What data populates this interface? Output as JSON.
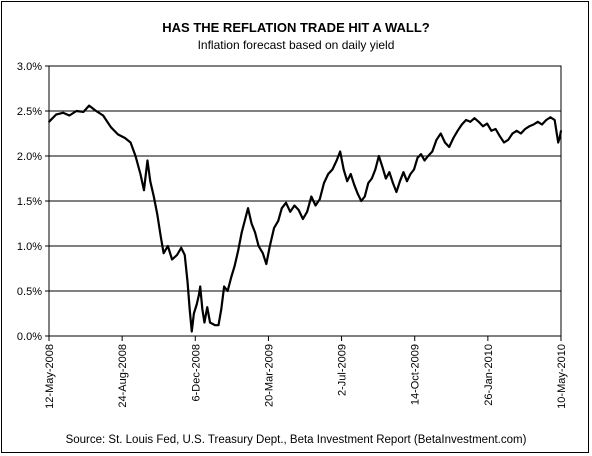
{
  "chart_data": {
    "type": "line",
    "title": "HAS THE REFLATION TRADE HIT A WALL?",
    "subtitle": "Inflation forecast based on daily yield",
    "xlabel": "",
    "ylabel": "",
    "source": "Source: St. Louis Fed, U.S. Treasury Dept., Beta Investment Report (BetaInvestment.com)",
    "x_tick_labels": [
      "12-May-2008",
      "24-Aug-2008",
      "6-Dec-2008",
      "20-Mar-2009",
      "2-Jul-2009",
      "14-Oct-2009",
      "26-Jan-2010",
      "10-May-2010"
    ],
    "y_tick_labels": [
      "0.0%",
      "0.5%",
      "1.0%",
      "1.5%",
      "2.0%",
      "2.5%",
      "3.0%"
    ],
    "ylim": [
      0,
      3.0
    ],
    "xlim": [
      "2008-05-12",
      "2010-05-10"
    ],
    "grid": "horizontal",
    "colors": {
      "line": "#000000",
      "grid": "#000000",
      "background": "#ffffff"
    },
    "series": [
      {
        "points": [
          [
            "2008-05-12",
            2.38
          ],
          [
            "2008-05-22",
            2.46
          ],
          [
            "2008-06-01",
            2.48
          ],
          [
            "2008-06-10",
            2.45
          ],
          [
            "2008-06-20",
            2.5
          ],
          [
            "2008-06-30",
            2.49
          ],
          [
            "2008-07-08",
            2.56
          ],
          [
            "2008-07-18",
            2.5
          ],
          [
            "2008-07-28",
            2.45
          ],
          [
            "2008-08-08",
            2.32
          ],
          [
            "2008-08-18",
            2.24
          ],
          [
            "2008-08-28",
            2.2
          ],
          [
            "2008-09-05",
            2.15
          ],
          [
            "2008-09-12",
            2.0
          ],
          [
            "2008-09-19",
            1.8
          ],
          [
            "2008-09-24",
            1.62
          ],
          [
            "2008-09-29",
            1.95
          ],
          [
            "2008-10-03",
            1.72
          ],
          [
            "2008-10-08",
            1.55
          ],
          [
            "2008-10-13",
            1.35
          ],
          [
            "2008-10-18",
            1.1
          ],
          [
            "2008-10-22",
            0.92
          ],
          [
            "2008-10-28",
            1.0
          ],
          [
            "2008-11-03",
            0.85
          ],
          [
            "2008-11-10",
            0.9
          ],
          [
            "2008-11-16",
            0.98
          ],
          [
            "2008-11-21",
            0.9
          ],
          [
            "2008-11-25",
            0.6
          ],
          [
            "2008-11-28",
            0.3
          ],
          [
            "2008-12-01",
            0.05
          ],
          [
            "2008-12-04",
            0.25
          ],
          [
            "2008-12-08",
            0.35
          ],
          [
            "2008-12-11",
            0.45
          ],
          [
            "2008-12-13",
            0.55
          ],
          [
            "2008-12-16",
            0.3
          ],
          [
            "2008-12-19",
            0.15
          ],
          [
            "2008-12-23",
            0.32
          ],
          [
            "2008-12-27",
            0.15
          ],
          [
            "2009-01-03",
            0.12
          ],
          [
            "2009-01-08",
            0.12
          ],
          [
            "2009-01-12",
            0.3
          ],
          [
            "2009-01-16",
            0.55
          ],
          [
            "2009-01-21",
            0.5
          ],
          [
            "2009-01-26",
            0.65
          ],
          [
            "2009-01-31",
            0.78
          ],
          [
            "2009-02-05",
            0.95
          ],
          [
            "2009-02-10",
            1.15
          ],
          [
            "2009-02-15",
            1.3
          ],
          [
            "2009-02-19",
            1.42
          ],
          [
            "2009-02-24",
            1.25
          ],
          [
            "2009-03-01",
            1.15
          ],
          [
            "2009-03-06",
            1.0
          ],
          [
            "2009-03-12",
            0.92
          ],
          [
            "2009-03-17",
            0.8
          ],
          [
            "2009-03-22",
            1.0
          ],
          [
            "2009-03-28",
            1.2
          ],
          [
            "2009-04-03",
            1.28
          ],
          [
            "2009-04-08",
            1.42
          ],
          [
            "2009-04-14",
            1.48
          ],
          [
            "2009-04-20",
            1.38
          ],
          [
            "2009-04-26",
            1.45
          ],
          [
            "2009-05-02",
            1.4
          ],
          [
            "2009-05-08",
            1.3
          ],
          [
            "2009-05-14",
            1.38
          ],
          [
            "2009-05-20",
            1.55
          ],
          [
            "2009-05-26",
            1.45
          ],
          [
            "2009-06-01",
            1.52
          ],
          [
            "2009-06-07",
            1.7
          ],
          [
            "2009-06-13",
            1.8
          ],
          [
            "2009-06-19",
            1.85
          ],
          [
            "2009-06-25",
            1.95
          ],
          [
            "2009-06-30",
            2.05
          ],
          [
            "2009-07-05",
            1.85
          ],
          [
            "2009-07-10",
            1.72
          ],
          [
            "2009-07-15",
            1.8
          ],
          [
            "2009-07-20",
            1.68
          ],
          [
            "2009-07-25",
            1.58
          ],
          [
            "2009-07-30",
            1.5
          ],
          [
            "2009-08-04",
            1.55
          ],
          [
            "2009-08-09",
            1.7
          ],
          [
            "2009-08-14",
            1.75
          ],
          [
            "2009-08-19",
            1.85
          ],
          [
            "2009-08-24",
            2.0
          ],
          [
            "2009-08-29",
            1.88
          ],
          [
            "2009-09-03",
            1.75
          ],
          [
            "2009-09-08",
            1.82
          ],
          [
            "2009-09-13",
            1.7
          ],
          [
            "2009-09-18",
            1.6
          ],
          [
            "2009-09-23",
            1.72
          ],
          [
            "2009-09-28",
            1.82
          ],
          [
            "2009-10-03",
            1.72
          ],
          [
            "2009-10-08",
            1.8
          ],
          [
            "2009-10-13",
            1.85
          ],
          [
            "2009-10-18",
            1.98
          ],
          [
            "2009-10-23",
            2.02
          ],
          [
            "2009-10-28",
            1.95
          ],
          [
            "2009-11-02",
            2.0
          ],
          [
            "2009-11-08",
            2.05
          ],
          [
            "2009-11-14",
            2.18
          ],
          [
            "2009-11-20",
            2.25
          ],
          [
            "2009-11-26",
            2.15
          ],
          [
            "2009-12-02",
            2.1
          ],
          [
            "2009-12-08",
            2.2
          ],
          [
            "2009-12-14",
            2.28
          ],
          [
            "2009-12-20",
            2.35
          ],
          [
            "2009-12-26",
            2.4
          ],
          [
            "2010-01-01",
            2.38
          ],
          [
            "2010-01-07",
            2.42
          ],
          [
            "2010-01-13",
            2.38
          ],
          [
            "2010-01-19",
            2.33
          ],
          [
            "2010-01-25",
            2.36
          ],
          [
            "2010-01-31",
            2.28
          ],
          [
            "2010-02-06",
            2.3
          ],
          [
            "2010-02-12",
            2.22
          ],
          [
            "2010-02-18",
            2.15
          ],
          [
            "2010-02-24",
            2.18
          ],
          [
            "2010-03-02",
            2.25
          ],
          [
            "2010-03-08",
            2.28
          ],
          [
            "2010-03-14",
            2.25
          ],
          [
            "2010-03-20",
            2.3
          ],
          [
            "2010-03-26",
            2.33
          ],
          [
            "2010-04-01",
            2.35
          ],
          [
            "2010-04-07",
            2.38
          ],
          [
            "2010-04-13",
            2.35
          ],
          [
            "2010-04-19",
            2.4
          ],
          [
            "2010-04-25",
            2.43
          ],
          [
            "2010-05-01",
            2.4
          ],
          [
            "2010-05-04",
            2.25
          ],
          [
            "2010-05-06",
            2.15
          ],
          [
            "2010-05-08",
            2.2
          ],
          [
            "2010-05-10",
            2.28
          ]
        ]
      }
    ]
  }
}
